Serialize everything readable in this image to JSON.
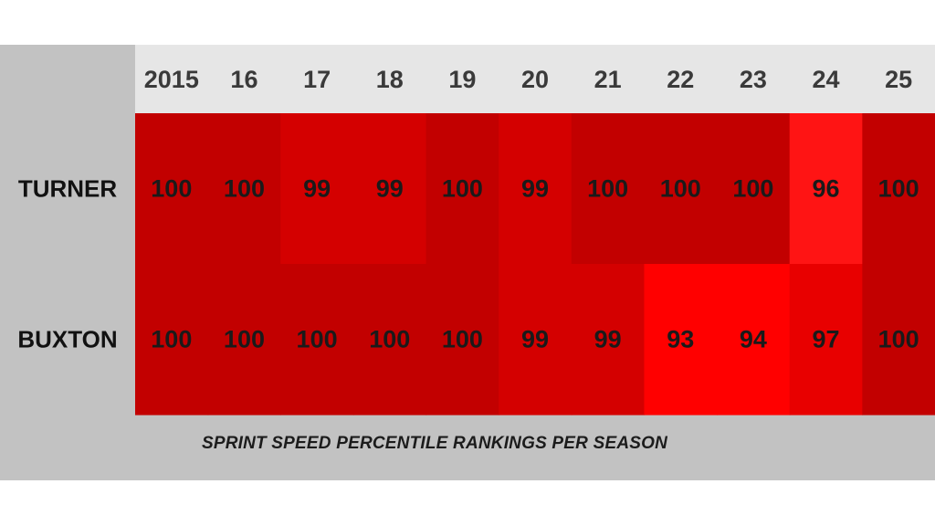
{
  "chart_data": {
    "type": "heatmap",
    "title": "",
    "caption": "SPRINT SPEED PERCENTILE RANKINGS PER SEASON",
    "columns": [
      "2015",
      "16",
      "17",
      "18",
      "19",
      "20",
      "21",
      "22",
      "23",
      "24",
      "25"
    ],
    "rows": [
      {
        "name": "TURNER",
        "values": [
          100,
          100,
          99,
          99,
          100,
          99,
          100,
          100,
          100,
          96,
          100
        ]
      },
      {
        "name": "BUXTON",
        "values": [
          100,
          100,
          100,
          100,
          100,
          99,
          99,
          93,
          94,
          97,
          100
        ]
      }
    ],
    "colors": {
      "100": "#c20000",
      "99": "#d40000",
      "97": "#e80000",
      "96": "#ff1414",
      "94": "#ff0000",
      "93": "#ff0000"
    },
    "header_background": "#e6e6e6",
    "panel_background": "#c2c2c2"
  }
}
